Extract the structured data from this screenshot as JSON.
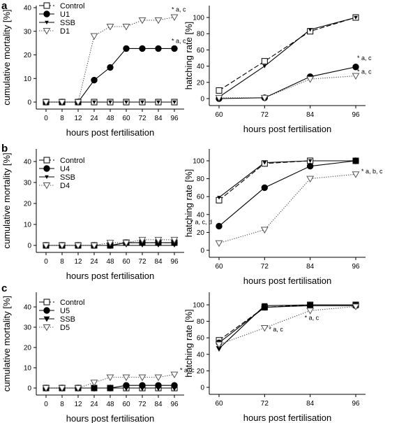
{
  "figure": {
    "panel_letters": [
      "a",
      "b",
      "c"
    ]
  },
  "chart_data": [
    {
      "id": "a-mortality",
      "type": "line",
      "panel_letter": "a",
      "xlabel": "hours post fertilisation",
      "ylabel": "cumulative mortality [%]",
      "x": [
        0,
        8,
        12,
        24,
        48,
        60,
        72,
        84,
        96
      ],
      "xlim": [
        0,
        96
      ],
      "ylim": [
        0,
        40
      ],
      "yticks": [
        0,
        10,
        20,
        30,
        40
      ],
      "legend_position": "top-left",
      "series": [
        {
          "name": "Control",
          "marker": "square-open",
          "dash": "dashed",
          "values": [
            0,
            0,
            0,
            0,
            0,
            0,
            0,
            0,
            0
          ]
        },
        {
          "name": "U1",
          "marker": "circle-filled",
          "dash": "solid",
          "values": [
            0,
            0,
            0,
            9.3,
            14.7,
            22.7,
            22.7,
            22.7,
            22.7
          ]
        },
        {
          "name": "SSB",
          "marker": "triangle-filled-small",
          "dash": "solid",
          "values": [
            0,
            0,
            0,
            0,
            0,
            0,
            0,
            0,
            0
          ]
        },
        {
          "name": "D1",
          "marker": "triangle-open",
          "dash": "dotted",
          "values": [
            0,
            0,
            0,
            28,
            32,
            32,
            34.7,
            34.7,
            36
          ]
        }
      ],
      "annotations": [
        {
          "text": "* a, c",
          "series": "D1",
          "x": 96
        },
        {
          "text": "* a, c",
          "series": "U1",
          "x": 96
        }
      ]
    },
    {
      "id": "a-hatching",
      "type": "line",
      "xlabel": "hours post fertilisation",
      "ylabel": "hatching rate [%]",
      "x": [
        60,
        72,
        84,
        96
      ],
      "xlim": [
        60,
        96
      ],
      "ylim": [
        0,
        100
      ],
      "yticks": [
        0,
        20,
        40,
        60,
        80,
        100
      ],
      "series": [
        {
          "name": "Control",
          "marker": "square-open",
          "dash": "dashed",
          "values": [
            10,
            46,
            83,
            100
          ]
        },
        {
          "name": "U1",
          "marker": "circle-filled",
          "dash": "solid",
          "values": [
            0,
            1,
            27,
            39
          ]
        },
        {
          "name": "SSB",
          "marker": "triangle-filled-small",
          "dash": "solid",
          "values": [
            2,
            40,
            85,
            100
          ]
        },
        {
          "name": "D1",
          "marker": "triangle-open",
          "dash": "dotted",
          "values": [
            1,
            1,
            24,
            28
          ]
        }
      ],
      "annotations": [
        {
          "text": "* a, c",
          "series": "U1",
          "x": 96
        },
        {
          "text": "* a, c",
          "series": "D1",
          "x": 96
        }
      ]
    },
    {
      "id": "b-mortality",
      "type": "line",
      "panel_letter": "b",
      "xlabel": "hours post fertilisation",
      "ylabel": "cumulative mortality [%]",
      "x": [
        0,
        8,
        12,
        24,
        48,
        60,
        72,
        84,
        96
      ],
      "xlim": [
        0,
        96
      ],
      "ylim": [
        0,
        40
      ],
      "yticks": [
        0,
        10,
        20,
        30,
        40
      ],
      "legend_position": "top-left",
      "series": [
        {
          "name": "Control",
          "marker": "square-open",
          "dash": "dashed",
          "values": [
            0,
            0,
            0,
            0,
            0,
            1.3,
            1.3,
            1.3,
            1.3
          ]
        },
        {
          "name": "U4",
          "marker": "circle-filled",
          "dash": "solid",
          "values": [
            0,
            0,
            0,
            0,
            0,
            1.3,
            1.3,
            1.3,
            1.3
          ]
        },
        {
          "name": "SSB",
          "marker": "triangle-filled-small",
          "dash": "solid",
          "values": [
            0,
            0,
            0,
            0,
            0,
            0,
            0,
            0,
            0
          ]
        },
        {
          "name": "D4",
          "marker": "triangle-open",
          "dash": "dotted",
          "values": [
            0,
            0,
            0,
            0,
            1.3,
            1.3,
            2.7,
            2.7,
            2.7
          ]
        }
      ],
      "annotations": []
    },
    {
      "id": "b-hatching",
      "type": "line",
      "xlabel": "hours post fertilisation",
      "ylabel": "hatching rate [%]",
      "x": [
        60,
        72,
        84,
        96
      ],
      "xlim": [
        60,
        96
      ],
      "ylim": [
        0,
        100
      ],
      "yticks": [
        0,
        20,
        40,
        60,
        80,
        100
      ],
      "series": [
        {
          "name": "Control",
          "marker": "square-open",
          "dash": "dashed",
          "values": [
            56,
            97,
            100,
            100
          ]
        },
        {
          "name": "U4",
          "marker": "circle-filled",
          "dash": "solid",
          "values": [
            27,
            70,
            94,
            100
          ]
        },
        {
          "name": "SSB",
          "marker": "triangle-filled-small",
          "dash": "solid",
          "values": [
            59,
            98,
            100,
            100
          ]
        },
        {
          "name": "D4",
          "marker": "triangle-open",
          "dash": "dotted",
          "values": [
            8,
            23,
            80,
            85
          ]
        }
      ],
      "annotations": [
        {
          "text": "* a, c, d",
          "series": "U4",
          "x": 60
        },
        {
          "text": "* a, b, c",
          "series": "D4",
          "x": 96
        }
      ]
    },
    {
      "id": "c-mortality",
      "type": "line",
      "panel_letter": "c",
      "xlabel": "hours post fertilisation",
      "ylabel": "cumulative mortality [%]",
      "x": [
        0,
        8,
        12,
        24,
        48,
        60,
        72,
        84,
        96
      ],
      "xlim": [
        0,
        96
      ],
      "ylim": [
        0,
        40
      ],
      "yticks": [
        0,
        10,
        20,
        30,
        40
      ],
      "legend_position": "top-left",
      "series": [
        {
          "name": "Control",
          "marker": "square-open",
          "dash": "dashed",
          "values": [
            0,
            0,
            0,
            0,
            0,
            0,
            0,
            0,
            0
          ]
        },
        {
          "name": "U5",
          "marker": "circle-filled",
          "dash": "solid",
          "values": [
            0,
            0,
            0,
            0,
            0,
            1.3,
            1.3,
            1.3,
            1.3
          ]
        },
        {
          "name": "SSB",
          "marker": "triangle-filled-large",
          "dash": "solid",
          "values": [
            0,
            0,
            0,
            0,
            0,
            0,
            0,
            0,
            0
          ]
        },
        {
          "name": "D5",
          "marker": "triangle-open",
          "dash": "dotted",
          "values": [
            0,
            0,
            0,
            2.7,
            5.3,
            5.3,
            5.3,
            5.3,
            6.7
          ]
        }
      ],
      "annotations": [
        {
          "text": "* a, c",
          "series": "D5",
          "x": 96
        }
      ]
    },
    {
      "id": "c-hatching",
      "type": "line",
      "xlabel": "hours post fertilisation",
      "ylabel": "hatching rate [%]",
      "x": [
        60,
        72,
        84,
        96
      ],
      "xlim": [
        60,
        96
      ],
      "ylim": [
        0,
        100
      ],
      "yticks": [
        0,
        20,
        40,
        60,
        80,
        100
      ],
      "series": [
        {
          "name": "Control",
          "marker": "square-open",
          "dash": "dashed",
          "values": [
            57,
            97,
            100,
            100
          ]
        },
        {
          "name": "U5",
          "marker": "circle-filled",
          "dash": "solid",
          "values": [
            54,
            97,
            99,
            99
          ]
        },
        {
          "name": "SSB",
          "marker": "triangle-filled-large",
          "dash": "solid",
          "values": [
            47,
            99,
            100,
            100
          ]
        },
        {
          "name": "D5",
          "marker": "triangle-open",
          "dash": "dotted",
          "values": [
            52,
            72,
            93,
            98
          ]
        }
      ],
      "annotations": [
        {
          "text": "* a, c",
          "series": "D5",
          "x": 84
        },
        {
          "text": "* a, c",
          "series": "D5",
          "x": 72
        }
      ]
    }
  ]
}
